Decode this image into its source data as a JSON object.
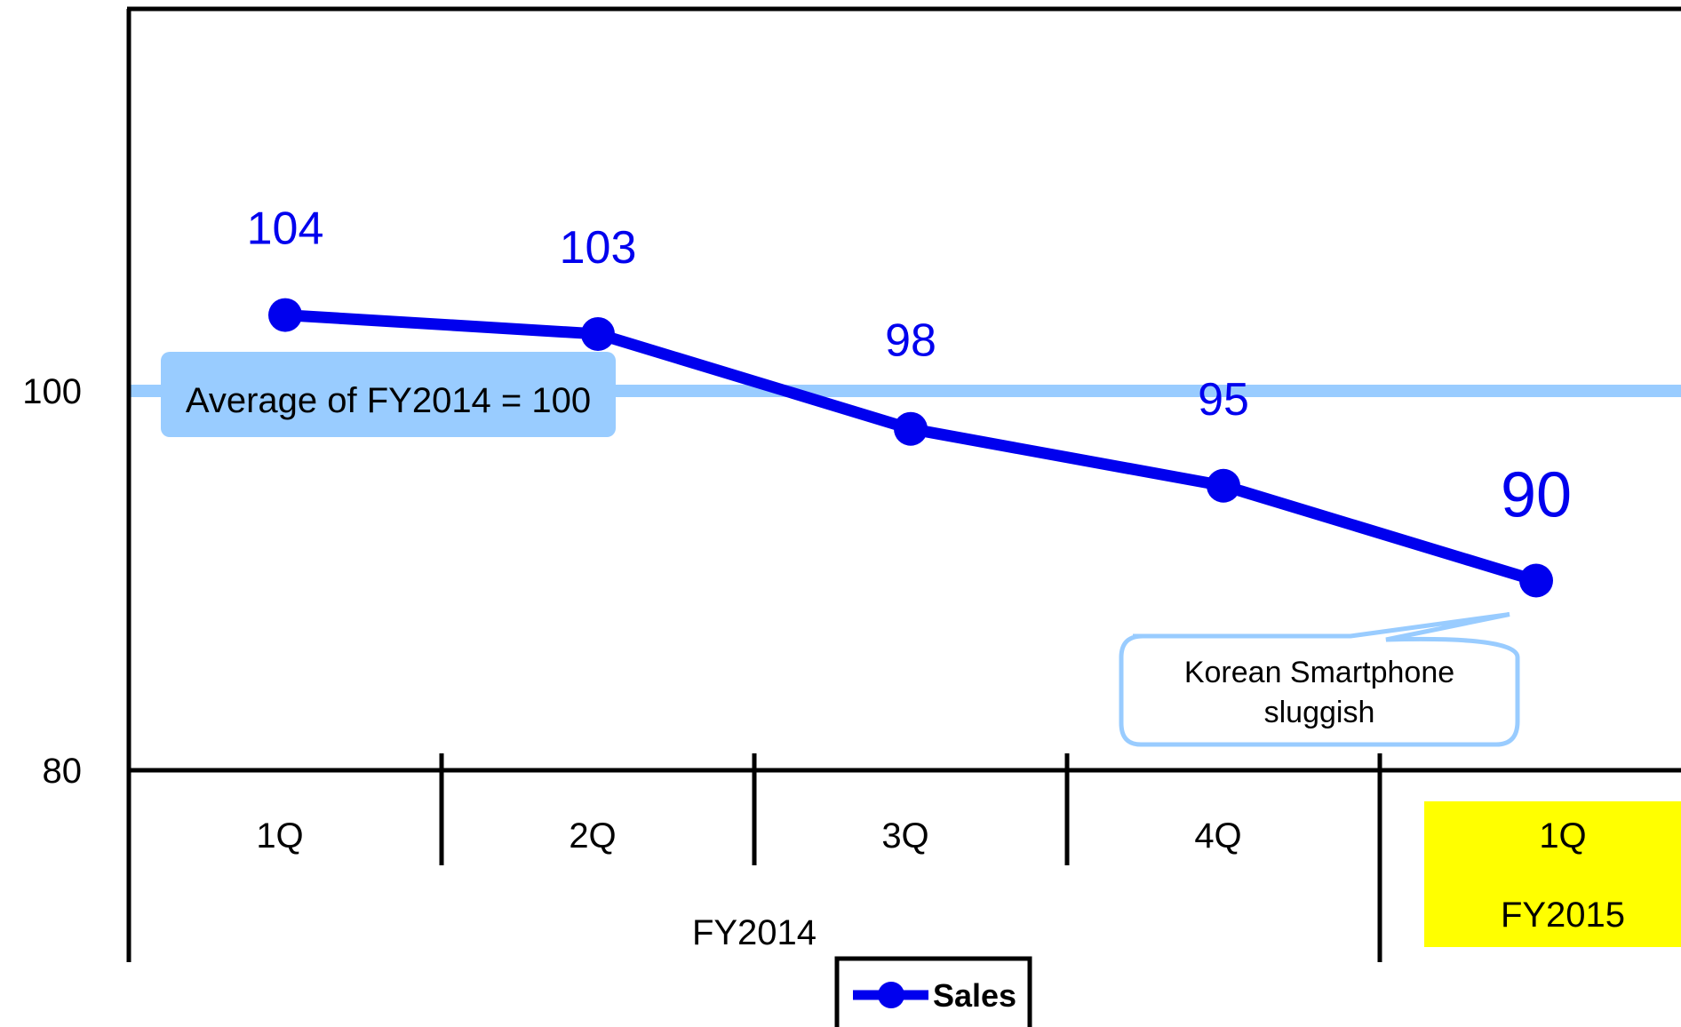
{
  "chart_data": {
    "type": "line",
    "categories": [
      "1Q",
      "2Q",
      "3Q",
      "4Q",
      "1Q"
    ],
    "groups": [
      {
        "label": "FY2014",
        "from": 0,
        "to": 3
      },
      {
        "label": "FY2015",
        "from": 4,
        "to": 4,
        "highlight": "#ffff00"
      }
    ],
    "series": [
      {
        "name": "Sales",
        "values": [
          104,
          103,
          98,
          95,
          90
        ],
        "color": "#0000ee"
      }
    ],
    "yticks": [
      80,
      100
    ],
    "ylim": [
      80,
      120
    ],
    "reference_line": {
      "value": 100,
      "label": "Average of FY2014 = 100",
      "color": "#99ccff"
    },
    "annotation": {
      "lines": [
        "Korean  Smartphone",
        "sluggish"
      ],
      "point_index": 4
    },
    "legend": {
      "position": "bottom",
      "label": "Sales"
    }
  }
}
